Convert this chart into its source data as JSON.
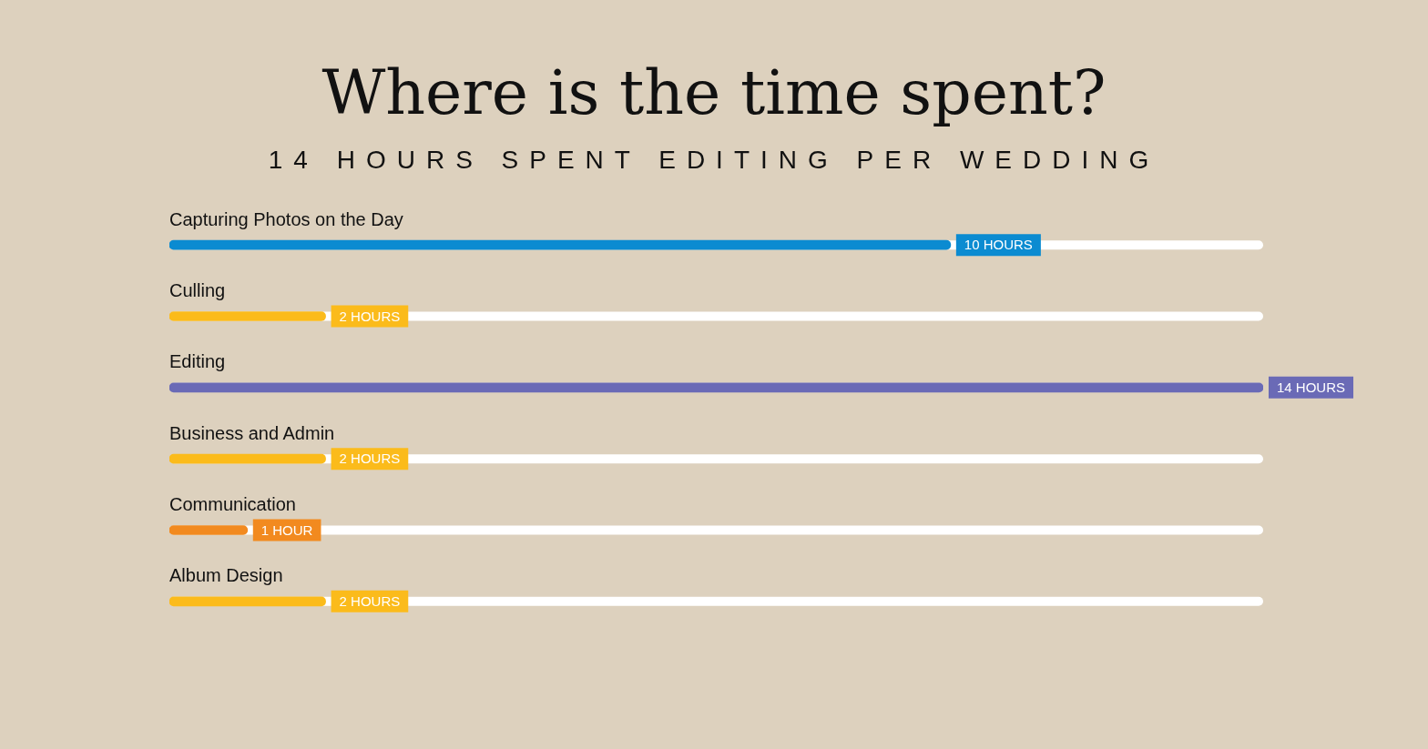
{
  "chart_data": {
    "type": "bar",
    "orientation": "horizontal",
    "title": "Where is the time spent?",
    "subtitle": "14 HOURS SPENT EDITING PER WEDDING",
    "categories": [
      "Capturing Photos on the Day",
      "Culling",
      "Editing",
      "Business and Admin",
      "Communication",
      "Album Design"
    ],
    "values": [
      10,
      2,
      14,
      2,
      1,
      2
    ],
    "value_labels": [
      "10 HOURS",
      "2 HOURS",
      "14 HOURS",
      "2 HOURS",
      "1 HOUR",
      "2 HOURS"
    ],
    "colors": [
      "#0b8bd1",
      "#fbbb1b",
      "#6a6ab6",
      "#fbbb1b",
      "#f28a1f",
      "#fbbb1b"
    ],
    "legend": false,
    "tick_labels": false
  }
}
